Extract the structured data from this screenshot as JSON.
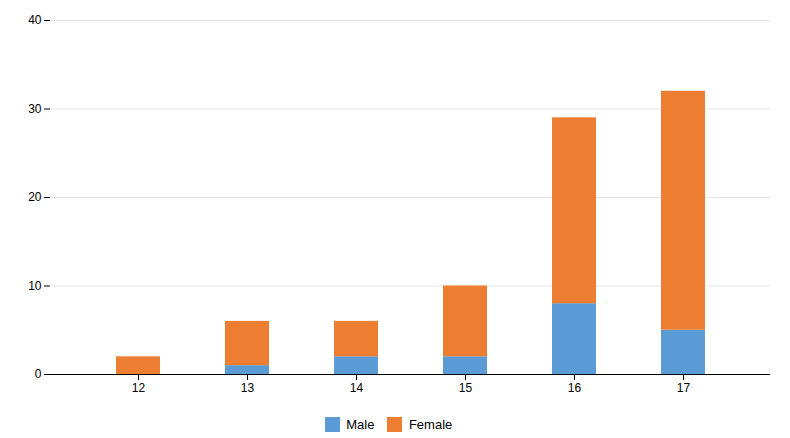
{
  "chart_data": {
    "type": "bar",
    "stacked": true,
    "categories": [
      "12",
      "13",
      "14",
      "15",
      "16",
      "17"
    ],
    "series": [
      {
        "name": "Male",
        "color": "#5B9BD5",
        "values": [
          0,
          1,
          2,
          2,
          8,
          5
        ]
      },
      {
        "name": "Female",
        "color": "#ED7D31",
        "values": [
          2,
          5,
          4,
          8,
          21,
          27
        ]
      }
    ],
    "ylim": [
      0,
      40
    ],
    "yticks": [
      0,
      10,
      20,
      30,
      40
    ],
    "grid": true,
    "legend": "bottom"
  }
}
